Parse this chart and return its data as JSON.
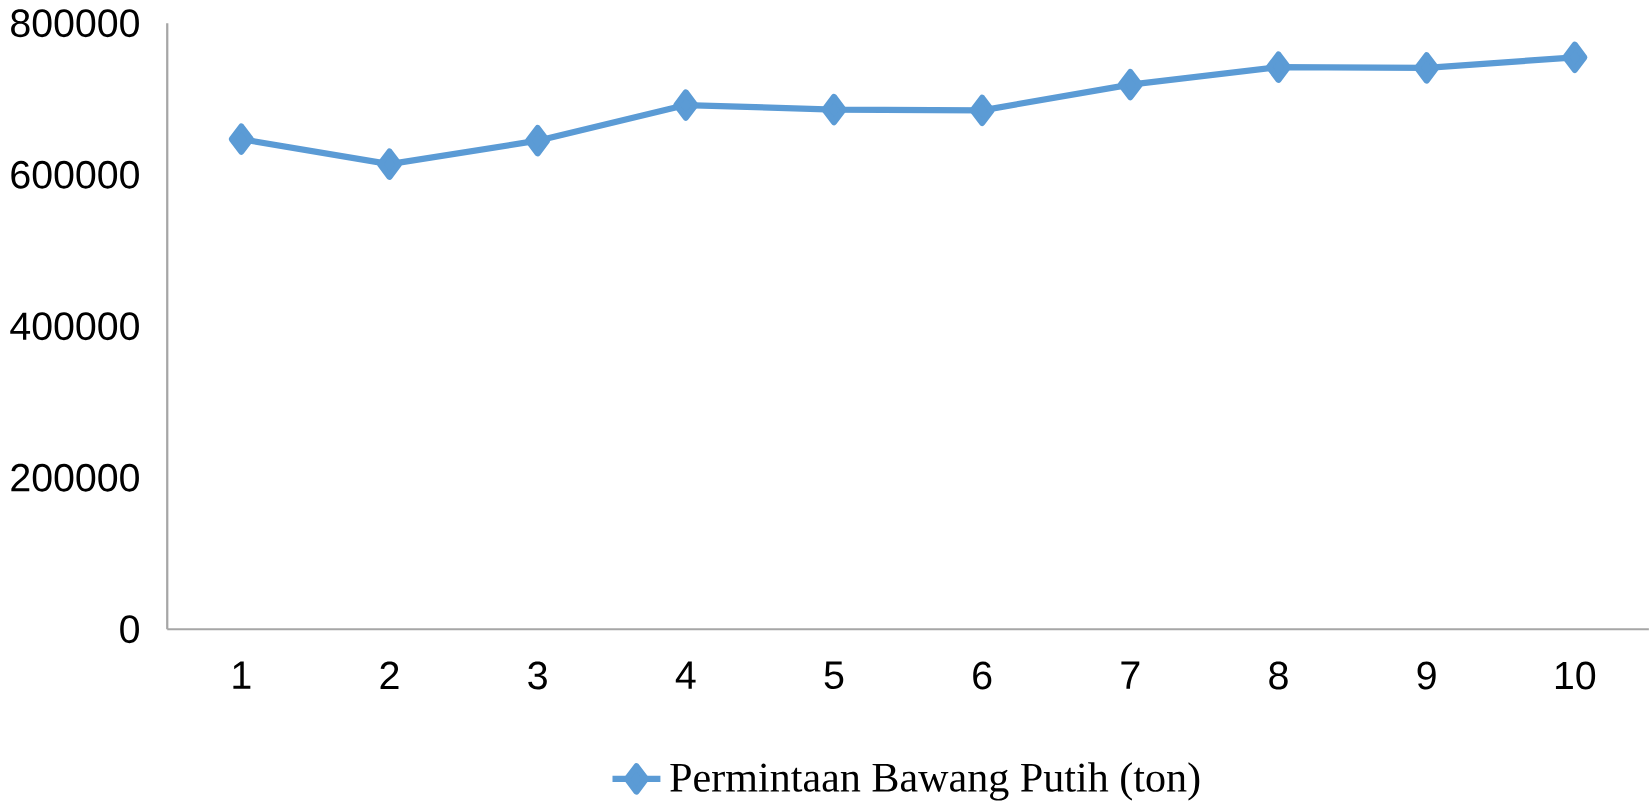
{
  "chart_data": {
    "type": "line",
    "categories": [
      "1",
      "2",
      "3",
      "4",
      "5",
      "6",
      "7",
      "8",
      "9",
      "10"
    ],
    "series": [
      {
        "name": "Permintaan Bawang Putih (ton)",
        "color": "#5b9bd5",
        "values": [
          647000,
          614000,
          645000,
          692000,
          686000,
          685000,
          719000,
          742000,
          741000,
          755000
        ]
      }
    ],
    "ylim": [
      0,
      800000
    ],
    "yticks": [
      0,
      200000,
      400000,
      600000,
      800000
    ],
    "grid": false,
    "legend": "bottom",
    "marker": "diamond",
    "line_style": "solid"
  }
}
